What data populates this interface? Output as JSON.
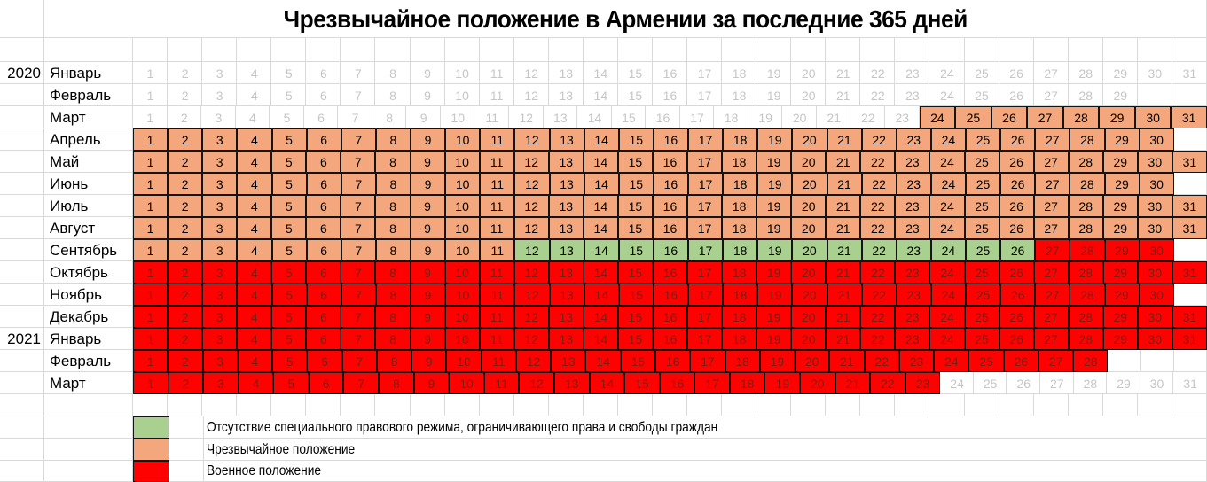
{
  "title": "Чрезвычайное положение в Армении за последние 365 дней",
  "colors": {
    "none": "#A9D08E",
    "emergency": "#F4A77C",
    "martial": "#FE0202",
    "border": "#141414",
    "grid": "#D9D9D9",
    "outside_text": "#C6C6C6",
    "martial_text": "#7A1F15"
  },
  "chart_data": {
    "type": "heatmap",
    "title": "Чрезвычайное положение в Армении за последние 365 дней",
    "day_min": 1,
    "day_max": 31,
    "legend_position": "bottom-left",
    "grid": true,
    "rows": [
      {
        "year": "2020",
        "month": "Январь",
        "days": 31,
        "runs": [
          [
            "outside",
            1,
            31
          ]
        ]
      },
      {
        "year": "",
        "month": "Февраль",
        "days": 29,
        "runs": [
          [
            "outside",
            1,
            29
          ]
        ]
      },
      {
        "year": "",
        "month": "Март",
        "days": 31,
        "runs": [
          [
            "outside",
            1,
            23
          ],
          [
            "emergency",
            24,
            31
          ]
        ]
      },
      {
        "year": "",
        "month": "Апрель",
        "days": 30,
        "runs": [
          [
            "emergency",
            1,
            30
          ]
        ]
      },
      {
        "year": "",
        "month": "Май",
        "days": 31,
        "runs": [
          [
            "emergency",
            1,
            31
          ]
        ]
      },
      {
        "year": "",
        "month": "Июнь",
        "days": 30,
        "runs": [
          [
            "emergency",
            1,
            30
          ]
        ]
      },
      {
        "year": "",
        "month": "Июль",
        "days": 31,
        "runs": [
          [
            "emergency",
            1,
            31
          ]
        ]
      },
      {
        "year": "",
        "month": "Август",
        "days": 31,
        "runs": [
          [
            "emergency",
            1,
            31
          ]
        ]
      },
      {
        "year": "",
        "month": "Сентябрь",
        "days": 30,
        "runs": [
          [
            "emergency",
            1,
            11
          ],
          [
            "none",
            12,
            26
          ],
          [
            "martial",
            27,
            30
          ]
        ]
      },
      {
        "year": "",
        "month": "Октябрь",
        "days": 31,
        "runs": [
          [
            "martial",
            1,
            31
          ]
        ]
      },
      {
        "year": "",
        "month": "Ноябрь",
        "days": 30,
        "runs": [
          [
            "martial",
            1,
            30
          ]
        ]
      },
      {
        "year": "",
        "month": "Декабрь",
        "days": 31,
        "runs": [
          [
            "martial",
            1,
            31
          ]
        ]
      },
      {
        "year": "2021",
        "month": "Январь",
        "days": 31,
        "runs": [
          [
            "martial",
            1,
            31
          ]
        ]
      },
      {
        "year": "",
        "month": "Февраль",
        "days": 28,
        "runs": [
          [
            "martial",
            1,
            28
          ]
        ]
      },
      {
        "year": "",
        "month": "Март",
        "days": 31,
        "runs": [
          [
            "martial",
            1,
            23
          ],
          [
            "outside",
            24,
            31
          ]
        ]
      }
    ],
    "legend": [
      {
        "state": "none",
        "color": "#A9D08E",
        "label": "Отсутствие специального правового режима, ограничивающего права и свободы граждан"
      },
      {
        "state": "emergency",
        "color": "#F4A77C",
        "label": "Чрезвычайное положение"
      },
      {
        "state": "martial",
        "color": "#FE0202",
        "label": "Военное положение"
      }
    ]
  }
}
